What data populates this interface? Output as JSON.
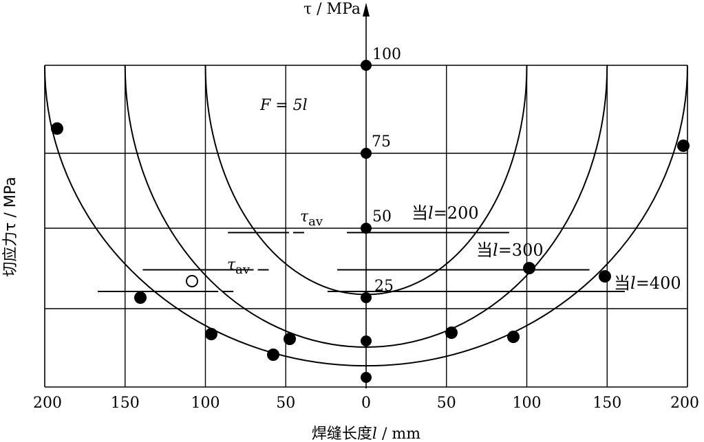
{
  "chart_data": {
    "type": "scatter",
    "title": "",
    "ylabel": "切应力τ / MPa",
    "xlabel": "焊缝长度",
    "xlabel_var": "l",
    "xlabel_unit": " / mm",
    "axis_label_top": "τ / MPa",
    "formula": "F = 5l",
    "x_ticks": [
      "200",
      "150",
      "100",
      "50",
      "0",
      "50",
      "100",
      "150",
      "200"
    ],
    "y_ticks_on_axis": [
      "100",
      "75",
      "50",
      "25"
    ],
    "xlim": [
      -205,
      205
    ],
    "ylim": [
      -20,
      105
    ],
    "grid": true,
    "axis_points": [
      100,
      75,
      50,
      25,
      11,
      0
    ],
    "curves": [
      {
        "half_width": 100,
        "top": 100,
        "bottom": 26
      },
      {
        "half_width": 150,
        "top": 100,
        "bottom": 9
      },
      {
        "half_width": 200,
        "top": 100,
        "bottom": 3
      }
    ],
    "avg_lines": [
      {
        "label": "当l=200",
        "symbol": "τav",
        "x_from": -86,
        "x_to": 89,
        "y": 46
      },
      {
        "label": "当l=300",
        "symbol": "τav",
        "x_from": -139,
        "x_to": 139,
        "y": 34
      },
      {
        "label": "当l=400",
        "symbol": "",
        "x_from": -167,
        "x_to": 161,
        "y": 27
      }
    ],
    "points": [
      {
        "x": -193,
        "y": 82,
        "filled": true
      },
      {
        "x": 197,
        "y": 76,
        "filled": true
      },
      {
        "x": 103,
        "y": 37,
        "filled": true
      },
      {
        "x": 150,
        "y": 34,
        "filled": true
      },
      {
        "x": -140,
        "y": 26,
        "filled": true
      },
      {
        "x": -108,
        "y": 33,
        "filled": false
      },
      {
        "x": -98,
        "y": 12,
        "filled": true
      },
      {
        "x": -48,
        "y": 11,
        "filled": true
      },
      {
        "x": -58,
        "y": 6,
        "filled": true
      },
      {
        "x": 54,
        "y": 13,
        "filled": true
      },
      {
        "x": 92,
        "y": 12,
        "filled": true
      }
    ]
  }
}
